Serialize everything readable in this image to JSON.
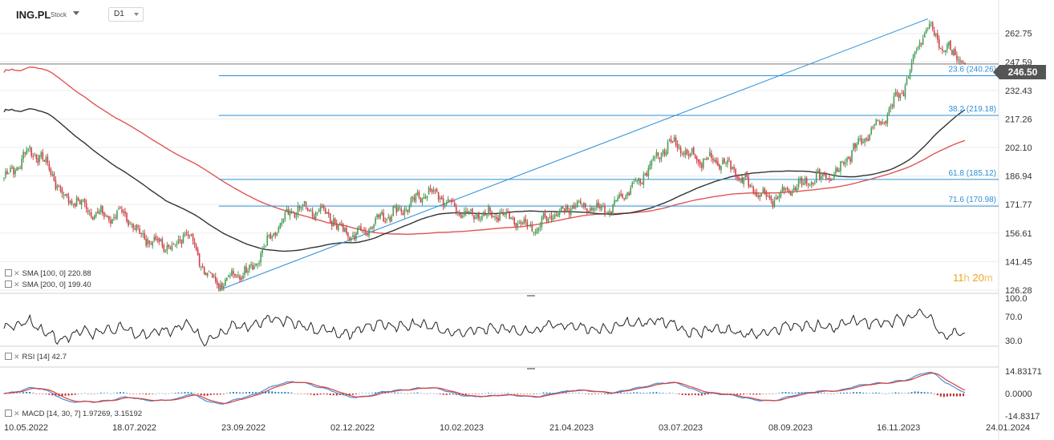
{
  "header": {
    "symbol": "ING.PL",
    "symbol_type": "Stock",
    "timeframe": "D1"
  },
  "legend": {
    "sma100": "SMA [100, 0]  220.88",
    "sma200": "SMA [200, 0]  199.40",
    "rsi": "RSI [14]  42.7",
    "macd": "MACD [14, 30, 7]  1.97269,  3.15192"
  },
  "timer": {
    "hours": "11",
    "h_unit": "h",
    "minutes": "20",
    "m_unit": "m"
  },
  "current_price": "246.50",
  "colors": {
    "up": "#4a9d57",
    "down": "#d1424a",
    "sma100": "#333333",
    "sma200": "#e05555",
    "fib": "#2c8fd6",
    "macd_line": "#4a90d9",
    "signal_line": "#d9403a",
    "hist_up": "#2a7fc1",
    "hist_down": "#c2262c"
  },
  "chart_data": {
    "type": "candlestick",
    "x_tick_labels": [
      "10.05.2022",
      "18.07.2022",
      "23.09.2022",
      "02.12.2022",
      "10.02.2023",
      "21.04.2023",
      "03.07.2023",
      "08.09.2023",
      "16.11.2023",
      "24.01.2024"
    ],
    "price_axis": [
      "262.75",
      "247.59",
      "232.43",
      "217.26",
      "202.10",
      "186.94",
      "171.77",
      "156.61",
      "141.45",
      "126.28"
    ],
    "ylim": [
      126.28,
      272
    ],
    "close_path": [
      [
        0,
        186
      ],
      [
        8,
        192
      ],
      [
        14,
        200
      ],
      [
        22,
        198
      ],
      [
        30,
        188
      ],
      [
        37,
        175
      ],
      [
        45,
        174
      ],
      [
        52,
        169
      ],
      [
        60,
        166
      ],
      [
        67,
        165
      ],
      [
        72,
        168
      ],
      [
        79,
        161
      ],
      [
        86,
        155
      ],
      [
        92,
        152
      ],
      [
        100,
        150
      ],
      [
        107,
        149
      ],
      [
        113,
        160
      ],
      [
        118,
        148
      ],
      [
        126,
        135
      ],
      [
        133,
        130
      ],
      [
        138,
        132
      ],
      [
        143,
        134
      ],
      [
        150,
        136
      ],
      [
        156,
        141
      ],
      [
        162,
        150
      ],
      [
        170,
        160
      ],
      [
        178,
        168
      ],
      [
        184,
        170
      ],
      [
        192,
        168
      ],
      [
        200,
        168
      ],
      [
        207,
        160
      ],
      [
        215,
        155
      ],
      [
        223,
        158
      ],
      [
        233,
        165
      ],
      [
        243,
        168
      ],
      [
        252,
        172
      ],
      [
        260,
        178
      ],
      [
        266,
        178
      ],
      [
        274,
        173
      ],
      [
        282,
        168
      ],
      [
        290,
        166
      ],
      [
        298,
        166
      ],
      [
        306,
        167
      ],
      [
        314,
        165
      ],
      [
        322,
        161
      ],
      [
        330,
        160
      ],
      [
        338,
        165
      ],
      [
        346,
        168
      ],
      [
        353,
        172
      ],
      [
        360,
        171
      ],
      [
        368,
        170
      ],
      [
        376,
        170
      ],
      [
        382,
        175
      ],
      [
        388,
        181
      ],
      [
        394,
        184
      ],
      [
        398,
        191
      ],
      [
        406,
        199
      ],
      [
        412,
        205
      ],
      [
        418,
        202
      ],
      [
        424,
        198
      ],
      [
        430,
        195
      ],
      [
        438,
        196
      ],
      [
        446,
        194
      ],
      [
        452,
        190
      ],
      [
        458,
        185
      ],
      [
        466,
        179
      ],
      [
        474,
        175
      ],
      [
        480,
        176
      ],
      [
        486,
        180
      ],
      [
        494,
        182
      ],
      [
        502,
        186
      ],
      [
        508,
        186
      ],
      [
        516,
        188
      ],
      [
        523,
        198
      ],
      [
        531,
        206
      ],
      [
        538,
        213
      ],
      [
        544,
        217
      ],
      [
        550,
        225
      ],
      [
        556,
        232
      ],
      [
        560,
        240
      ],
      [
        564,
        252
      ],
      [
        568,
        260
      ],
      [
        572,
        266
      ],
      [
        576,
        262
      ],
      [
        580,
        256
      ],
      [
        584,
        254
      ],
      [
        588,
        252
      ],
      [
        592,
        250
      ],
      [
        595,
        246.5
      ]
    ],
    "high": 270.5,
    "low": 126.28,
    "series": [
      {
        "name": "SMA [100, 0]",
        "last": 220.88
      },
      {
        "name": "SMA [200, 0]",
        "last": 199.4
      }
    ],
    "horizontal_line": 246.5,
    "fibonacci_levels": [
      {
        "label": "23.6 (240.26)",
        "value": 240.26
      },
      {
        "label": "38.2 (219.18)",
        "value": 219.18
      },
      {
        "label": "61.8 (185.12)",
        "value": 185.12
      },
      {
        "label": "71.6 (170.98)",
        "value": 170.98
      }
    ],
    "rsi": {
      "axis": [
        "100.0",
        "70.0",
        "30.0"
      ],
      "last": 42.7
    },
    "macd": {
      "axis": [
        "14.83171",
        "0.0000",
        "-14.8317"
      ],
      "macd": 1.97269,
      "signal": 3.15192
    }
  }
}
